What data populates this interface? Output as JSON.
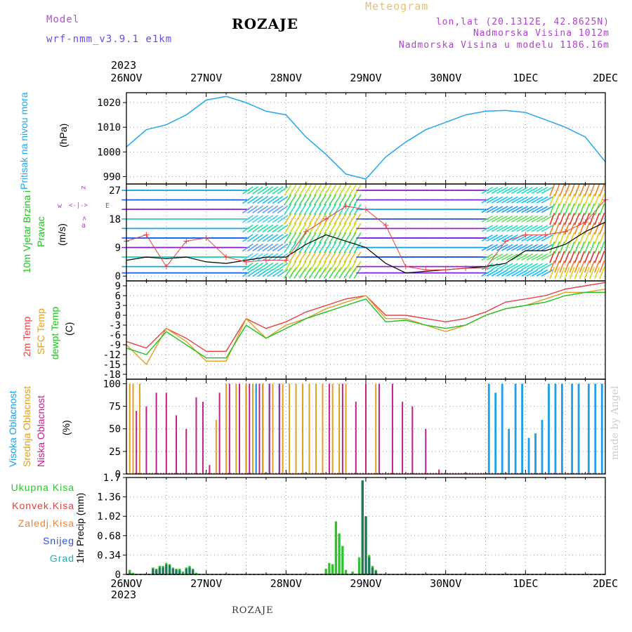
{
  "header": {
    "model_label": "Model",
    "model_value": "wrf-nmm_v3.9.1 e1km",
    "title": "ROZAJE",
    "meteogram": "Meteogram",
    "coords": "lon,lat (20.1312E, 42.8625N)",
    "elevation": "Nadmorska Visina 1012m",
    "model_elevation": "Nadmorska Visina u modelu 1186.16m",
    "year_top": "2023",
    "year_bottom": "2023",
    "footer_title": "ROZAJE",
    "made_by": "made by Angel"
  },
  "colors": {
    "pressure": "#22a8e8",
    "temp2m": "#e84040",
    "sfc": "#e0a020",
    "dewpt": "#20c020",
    "visoka": "#1fa0e8",
    "srednja": "#e0a020",
    "niska": "#c0208a",
    "precip_total": "#30c030",
    "precip_conv": "#e04040",
    "precip_grad": "#20a0a0",
    "precip_snow": "#3050d0",
    "precip_dark": "#207060"
  },
  "chart_data": [
    {
      "type": "line",
      "panel": "pressure",
      "ylabel": "Pritisak na nivou mora",
      "unit": "(hPa)",
      "x_ticks": [
        "26NOV",
        "27NOV",
        "28NOV",
        "29NOV",
        "30NOV",
        "1DEC",
        "2DEC"
      ],
      "yticks": [
        990,
        1000,
        1010,
        1020
      ],
      "ylim": [
        987,
        1024
      ],
      "x_hours": [
        0,
        6,
        12,
        18,
        24,
        30,
        36,
        42,
        48,
        54,
        60,
        66,
        72,
        78,
        84,
        90,
        96,
        102,
        108,
        114,
        120,
        126,
        132,
        138,
        144
      ],
      "series": [
        {
          "values": [
            1002,
            1009,
            1011,
            1015,
            1021,
            1022.5,
            1020,
            1016.5,
            1015,
            1006,
            999,
            991,
            989,
            998,
            1004,
            1009,
            1012,
            1015,
            1016.5,
            1016.8,
            1016,
            1013,
            1010,
            1006,
            996
          ]
        }
      ]
    },
    {
      "type": "line",
      "panel": "wind",
      "ylabel": "10m Vjetar Brzina i Pravac",
      "unit": "(m/s)",
      "compass": {
        "n": "z",
        "s": "<",
        "w": "w",
        "e": "E",
        "marks": "<-|->",
        "alpha": "a"
      },
      "yticks": [
        0,
        9,
        18,
        27
      ],
      "ylim": [
        -1.5,
        29
      ],
      "x_hours": [
        0,
        6,
        12,
        18,
        24,
        30,
        36,
        42,
        48,
        54,
        60,
        66,
        72,
        78,
        84,
        90,
        96,
        102,
        108,
        114,
        120,
        126,
        132,
        138,
        144
      ],
      "series": [
        {
          "values": [
            5,
            6,
            5.5,
            6,
            4.5,
            4,
            5,
            6,
            6,
            10,
            13,
            11,
            9,
            4,
            1,
            1.5,
            2,
            2.5,
            3,
            4,
            8,
            8,
            10,
            14,
            17
          ]
        },
        {
          "values": [
            11,
            13,
            3,
            11,
            12,
            6,
            4.5,
            5,
            5,
            14,
            18,
            22,
            21,
            16,
            3,
            2,
            2,
            2.5,
            2.5,
            11,
            13,
            13,
            14,
            17,
            24
          ]
        }
      ]
    },
    {
      "type": "line",
      "panel": "temperature",
      "ylabels": [
        "2m Temp",
        "SFC Temp",
        "dewpt Temp"
      ],
      "unit": "(C)",
      "yticks": [
        -18,
        -15,
        -12,
        -9,
        -6,
        -3,
        0,
        3,
        6,
        9
      ],
      "ylim": [
        -19.5,
        10.5
      ],
      "x_hours": [
        0,
        6,
        12,
        18,
        24,
        30,
        36,
        42,
        48,
        54,
        60,
        66,
        72,
        78,
        84,
        90,
        96,
        102,
        108,
        114,
        120,
        126,
        132,
        138,
        144
      ],
      "series": [
        {
          "name": "2m Temp",
          "values": [
            -8,
            -10,
            -4,
            -7,
            -11,
            -11,
            -1,
            -4,
            -2,
            1,
            3,
            5,
            6,
            0,
            0,
            -1,
            -2,
            -1,
            1,
            4,
            5,
            6,
            8,
            9,
            10
          ]
        },
        {
          "name": "SFC Temp",
          "values": [
            -9,
            -15,
            -4,
            -8,
            -14,
            -14,
            -1,
            -7,
            -3,
            -1,
            2,
            4,
            6,
            -1,
            -1,
            -3,
            -5,
            -3,
            0,
            2,
            3,
            5,
            7,
            7,
            8
          ]
        },
        {
          "name": "dewpt Temp",
          "values": [
            -10,
            -12,
            -5,
            -9,
            -13,
            -13,
            -3,
            -7,
            -4,
            -1,
            1,
            3,
            5,
            -2,
            -1.5,
            -3,
            -4,
            -3,
            0,
            2,
            3,
            4,
            6,
            7,
            7
          ]
        }
      ]
    },
    {
      "type": "bar",
      "panel": "cloud",
      "ylabels": [
        "Visoka Oblacnost",
        "Srednja Oblacnost",
        "Niska Oblacnost"
      ],
      "unit": "(%)",
      "yticks": [
        0,
        25,
        50,
        75,
        100
      ],
      "ylim": [
        0,
        105
      ],
      "series": [
        {
          "name": "Visoka Oblacnost",
          "bars": [
            [
              36,
              0.5,
              100
            ],
            [
              39,
              0.5,
              100
            ],
            [
              41,
              0.5,
              100
            ],
            [
              43,
              0.5,
              100
            ],
            [
              46,
              0.5,
              100
            ],
            [
              109,
              0.6,
              100
            ],
            [
              111,
              0.6,
              90
            ],
            [
              113,
              0.6,
              100
            ],
            [
              115,
              0.6,
              50
            ],
            [
              117,
              0.6,
              100
            ],
            [
              119,
              0.6,
              100
            ],
            [
              121,
              0.6,
              40
            ],
            [
              123,
              0.6,
              45
            ],
            [
              125,
              0.6,
              60
            ],
            [
              127,
              0.6,
              100
            ],
            [
              129,
              0.6,
              100
            ],
            [
              131,
              0.6,
              100
            ],
            [
              134,
              0.6,
              100
            ],
            [
              136,
              0.6,
              100
            ],
            [
              139,
              0.6,
              100
            ],
            [
              141,
              0.6,
              100
            ],
            [
              143,
              0.6,
              100
            ]
          ]
        },
        {
          "name": "Srednja Oblacnost",
          "bars": [
            [
              1,
              0.4,
              100
            ],
            [
              2,
              0.4,
              100
            ],
            [
              4,
              0.4,
              100
            ],
            [
              27,
              0.4,
              60
            ],
            [
              30,
              0.4,
              100
            ],
            [
              33,
              0.4,
              100
            ],
            [
              36,
              0.4,
              100
            ],
            [
              38,
              0.4,
              100
            ],
            [
              41,
              0.4,
              100
            ],
            [
              44,
              0.4,
              100
            ],
            [
              47,
              0.4,
              100
            ],
            [
              49,
              0.4,
              100
            ],
            [
              51,
              0.4,
              100
            ],
            [
              53,
              0.4,
              100
            ],
            [
              55,
              0.4,
              100
            ],
            [
              57,
              0.4,
              100
            ],
            [
              59,
              0.4,
              100
            ],
            [
              62,
              0.4,
              100
            ],
            [
              64,
              0.4,
              100
            ],
            [
              66,
              0.4,
              100
            ],
            [
              72,
              0.4,
              100
            ],
            [
              75,
              0.4,
              100
            ]
          ]
        },
        {
          "name": "Niska Oblacnost",
          "bars": [
            [
              3,
              0.4,
              70
            ],
            [
              6,
              0.4,
              75
            ],
            [
              9,
              0.4,
              90
            ],
            [
              12,
              0.4,
              90
            ],
            [
              15,
              0.4,
              65
            ],
            [
              18,
              0.4,
              50
            ],
            [
              21,
              0.4,
              85
            ],
            [
              23,
              0.4,
              80
            ],
            [
              25,
              0.4,
              10
            ],
            [
              28,
              0.4,
              90
            ],
            [
              31,
              0.4,
              100
            ],
            [
              34,
              0.4,
              100
            ],
            [
              37,
              0.4,
              100
            ],
            [
              40,
              0.4,
              100
            ],
            [
              43,
              0.4,
              100
            ],
            [
              46,
              0.4,
              100
            ],
            [
              61,
              0.4,
              100
            ],
            [
              65,
              0.4,
              100
            ],
            [
              69,
              0.4,
              80
            ],
            [
              72,
              0.4,
              100
            ],
            [
              76,
              0.4,
              100
            ],
            [
              80,
              0.4,
              100
            ],
            [
              83,
              0.4,
              80
            ],
            [
              86,
              0.4,
              75
            ],
            [
              90,
              0.4,
              50
            ],
            [
              94,
              0.4,
              5
            ]
          ]
        }
      ]
    },
    {
      "type": "bar",
      "panel": "precip",
      "legend": [
        "Ukupna Kisa",
        "Konvek.Kisa",
        "Zaledj.Kisa",
        "Snijeg",
        "Grad"
      ],
      "ylabel": "1hr Precip (mm)",
      "yticks": [
        0,
        0.34,
        0.68,
        1.02,
        1.36,
        1.7
      ],
      "ylim": [
        0,
        1.7
      ],
      "series": [
        {
          "name": "Ukupna Kisa",
          "bars": [
            [
              1,
              0.08
            ],
            [
              2,
              0.03
            ],
            [
              8,
              0.12
            ],
            [
              9,
              0.1
            ],
            [
              10,
              0.15
            ],
            [
              11,
              0.15
            ],
            [
              12,
              0.2
            ],
            [
              13,
              0.18
            ],
            [
              14,
              0.12
            ],
            [
              15,
              0.1
            ],
            [
              16,
              0.1
            ],
            [
              17,
              0.05
            ],
            [
              18,
              0.12
            ],
            [
              19,
              0.15
            ],
            [
              20,
              0.1
            ],
            [
              21,
              0.03
            ],
            [
              60,
              0.1
            ],
            [
              61,
              0.2
            ],
            [
              62,
              0.18
            ],
            [
              63,
              0.93
            ],
            [
              64,
              0.72
            ],
            [
              65,
              0.5
            ],
            [
              66,
              0.08
            ],
            [
              68,
              0.05
            ],
            [
              70,
              0.3
            ],
            [
              71,
              1.65
            ],
            [
              72,
              1.02
            ],
            [
              73,
              0.34
            ],
            [
              74,
              0.15
            ],
            [
              75,
              0.08
            ]
          ]
        },
        {
          "name": "Snijeg",
          "bars": [
            [
              1,
              0.03
            ],
            [
              8,
              0.1
            ],
            [
              9,
              0.08
            ],
            [
              10,
              0.12
            ],
            [
              11,
              0.12
            ],
            [
              12,
              0.17
            ],
            [
              13,
              0.16
            ],
            [
              14,
              0.1
            ],
            [
              15,
              0.08
            ],
            [
              16,
              0.07
            ],
            [
              18,
              0.1
            ],
            [
              19,
              0.12
            ],
            [
              20,
              0.08
            ],
            [
              71,
              1.65
            ],
            [
              72,
              1.02
            ],
            [
              73,
              0.3
            ],
            [
              74,
              0.12
            ],
            [
              75,
              0.06
            ]
          ]
        }
      ]
    }
  ]
}
